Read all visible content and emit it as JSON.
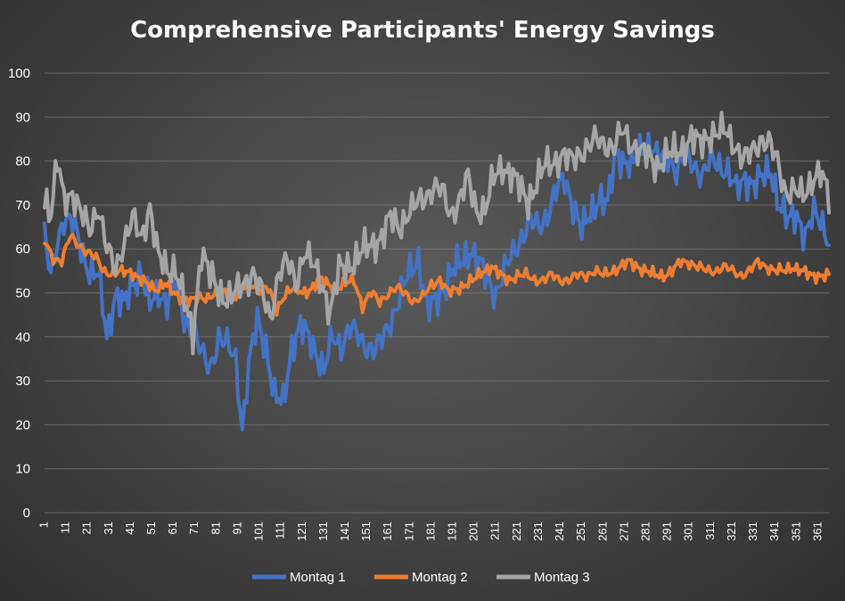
{
  "chart_data": {
    "type": "line",
    "title": "Comprehensive Participants' Energy Savings",
    "xlabel": "",
    "ylabel": "",
    "ylim": [
      0,
      100
    ],
    "yticks": [
      0,
      10,
      20,
      30,
      40,
      50,
      60,
      70,
      80,
      90,
      100
    ],
    "xticks": [
      1,
      11,
      21,
      31,
      41,
      51,
      61,
      71,
      81,
      91,
      101,
      111,
      121,
      131,
      141,
      151,
      161,
      171,
      181,
      191,
      201,
      211,
      221,
      231,
      241,
      251,
      261,
      271,
      281,
      291,
      301,
      311,
      321,
      331,
      341,
      351,
      361
    ],
    "x_range": [
      1,
      366
    ],
    "grid": true,
    "legend_position": "bottom",
    "series": [
      {
        "name": "Montag 1",
        "color": "#4472c4",
        "keypoints": [
          [
            1,
            63
          ],
          [
            4,
            53
          ],
          [
            7,
            62
          ],
          [
            10,
            67
          ],
          [
            14,
            66
          ],
          [
            18,
            60
          ],
          [
            22,
            55
          ],
          [
            26,
            54
          ],
          [
            30,
            40
          ],
          [
            34,
            50
          ],
          [
            38,
            47
          ],
          [
            42,
            52
          ],
          [
            46,
            55
          ],
          [
            50,
            47
          ],
          [
            54,
            50
          ],
          [
            58,
            48
          ],
          [
            62,
            52
          ],
          [
            66,
            44
          ],
          [
            70,
            42
          ],
          [
            74,
            36
          ],
          [
            78,
            33
          ],
          [
            82,
            40
          ],
          [
            86,
            38
          ],
          [
            90,
            35
          ],
          [
            93,
            19
          ],
          [
            96,
            33
          ],
          [
            100,
            44
          ],
          [
            104,
            38
          ],
          [
            108,
            26
          ],
          [
            112,
            25
          ],
          [
            116,
            38
          ],
          [
            120,
            42
          ],
          [
            124,
            40
          ],
          [
            128,
            36
          ],
          [
            131,
            32
          ],
          [
            135,
            40
          ],
          [
            139,
            38
          ],
          [
            143,
            42
          ],
          [
            147,
            40
          ],
          [
            151,
            38
          ],
          [
            155,
            37
          ],
          [
            159,
            40
          ],
          [
            163,
            45
          ],
          [
            167,
            50
          ],
          [
            171,
            55
          ],
          [
            175,
            58
          ],
          [
            179,
            46
          ],
          [
            183,
            48
          ],
          [
            187,
            52
          ],
          [
            191,
            55
          ],
          [
            195,
            57
          ],
          [
            199,
            60
          ],
          [
            203,
            57
          ],
          [
            207,
            53
          ],
          [
            211,
            50
          ],
          [
            215,
            55
          ],
          [
            219,
            59
          ],
          [
            223,
            63
          ],
          [
            227,
            66
          ],
          [
            231,
            65
          ],
          [
            235,
            68
          ],
          [
            239,
            73
          ],
          [
            243,
            76
          ],
          [
            247,
            70
          ],
          [
            251,
            64
          ],
          [
            255,
            68
          ],
          [
            259,
            72
          ],
          [
            263,
            70
          ],
          [
            267,
            82
          ],
          [
            271,
            80
          ],
          [
            275,
            79
          ],
          [
            279,
            83
          ],
          [
            283,
            84
          ],
          [
            287,
            80
          ],
          [
            291,
            81
          ],
          [
            295,
            78
          ],
          [
            299,
            81
          ],
          [
            303,
            79
          ],
          [
            307,
            77
          ],
          [
            311,
            80
          ],
          [
            315,
            79
          ],
          [
            319,
            78
          ],
          [
            323,
            73
          ],
          [
            327,
            76
          ],
          [
            331,
            75
          ],
          [
            335,
            76
          ],
          [
            339,
            78
          ],
          [
            343,
            70
          ],
          [
            347,
            66
          ],
          [
            351,
            68
          ],
          [
            355,
            63
          ],
          [
            359,
            68
          ],
          [
            363,
            66
          ],
          [
            366,
            62
          ]
        ],
        "amplitude": 5
      },
      {
        "name": "Montag 2",
        "color": "#ed7d31",
        "keypoints": [
          [
            1,
            62
          ],
          [
            5,
            58
          ],
          [
            9,
            57
          ],
          [
            13,
            63
          ],
          [
            17,
            61
          ],
          [
            21,
            59
          ],
          [
            25,
            58
          ],
          [
            29,
            55
          ],
          [
            33,
            54
          ],
          [
            37,
            55
          ],
          [
            41,
            55
          ],
          [
            45,
            53
          ],
          [
            49,
            52
          ],
          [
            53,
            51
          ],
          [
            57,
            52
          ],
          [
            61,
            50
          ],
          [
            65,
            49
          ],
          [
            69,
            48
          ],
          [
            73,
            49
          ],
          [
            77,
            49
          ],
          [
            81,
            50
          ],
          [
            85,
            50
          ],
          [
            89,
            49
          ],
          [
            93,
            51
          ],
          [
            97,
            52
          ],
          [
            101,
            51
          ],
          [
            105,
            51
          ],
          [
            109,
            46
          ],
          [
            113,
            50
          ],
          [
            117,
            51
          ],
          [
            121,
            50
          ],
          [
            125,
            51
          ],
          [
            129,
            53
          ],
          [
            133,
            52
          ],
          [
            137,
            51
          ],
          [
            141,
            52
          ],
          [
            145,
            53
          ],
          [
            149,
            47
          ],
          [
            153,
            50
          ],
          [
            157,
            48
          ],
          [
            161,
            50
          ],
          [
            165,
            51
          ],
          [
            169,
            50
          ],
          [
            173,
            48
          ],
          [
            177,
            49
          ],
          [
            181,
            52
          ],
          [
            185,
            53
          ],
          [
            189,
            50
          ],
          [
            193,
            51
          ],
          [
            197,
            52
          ],
          [
            201,
            53
          ],
          [
            205,
            55
          ],
          [
            209,
            56
          ],
          [
            213,
            54
          ],
          [
            217,
            53
          ],
          [
            221,
            54
          ],
          [
            225,
            54
          ],
          [
            229,
            53
          ],
          [
            233,
            53
          ],
          [
            237,
            54
          ],
          [
            241,
            53
          ],
          [
            245,
            53
          ],
          [
            249,
            54
          ],
          [
            253,
            54
          ],
          [
            257,
            55
          ],
          [
            261,
            54
          ],
          [
            265,
            55
          ],
          [
            269,
            56
          ],
          [
            273,
            57
          ],
          [
            277,
            56
          ],
          [
            281,
            55
          ],
          [
            285,
            54
          ],
          [
            289,
            54
          ],
          [
            293,
            55
          ],
          [
            297,
            57
          ],
          [
            301,
            57
          ],
          [
            305,
            56
          ],
          [
            309,
            55
          ],
          [
            313,
            55
          ],
          [
            317,
            56
          ],
          [
            321,
            55
          ],
          [
            325,
            54
          ],
          [
            329,
            55
          ],
          [
            333,
            57
          ],
          [
            337,
            56
          ],
          [
            341,
            55
          ],
          [
            345,
            55
          ],
          [
            349,
            56
          ],
          [
            353,
            55
          ],
          [
            357,
            54
          ],
          [
            361,
            54
          ],
          [
            366,
            54
          ]
        ],
        "amplitude": 1.8
      },
      {
        "name": "Montag 3",
        "color": "#a5a5a5",
        "keypoints": [
          [
            1,
            72
          ],
          [
            4,
            68
          ],
          [
            7,
            80
          ],
          [
            10,
            71
          ],
          [
            14,
            73
          ],
          [
            18,
            68
          ],
          [
            22,
            64
          ],
          [
            26,
            70
          ],
          [
            30,
            60
          ],
          [
            34,
            55
          ],
          [
            38,
            62
          ],
          [
            42,
            67
          ],
          [
            46,
            62
          ],
          [
            50,
            70
          ],
          [
            54,
            58
          ],
          [
            58,
            55
          ],
          [
            62,
            56
          ],
          [
            66,
            48
          ],
          [
            70,
            40
          ],
          [
            74,
            60
          ],
          [
            78,
            54
          ],
          [
            82,
            50
          ],
          [
            86,
            49
          ],
          [
            90,
            50
          ],
          [
            94,
            52
          ],
          [
            98,
            55
          ],
          [
            102,
            50
          ],
          [
            106,
            44
          ],
          [
            110,
            55
          ],
          [
            114,
            57
          ],
          [
            118,
            52
          ],
          [
            122,
            60
          ],
          [
            126,
            56
          ],
          [
            130,
            52
          ],
          [
            134,
            46
          ],
          [
            138,
            55
          ],
          [
            142,
            56
          ],
          [
            146,
            58
          ],
          [
            150,
            60
          ],
          [
            154,
            61
          ],
          [
            158,
            63
          ],
          [
            162,
            67
          ],
          [
            166,
            65
          ],
          [
            170,
            68
          ],
          [
            174,
            70
          ],
          [
            178,
            72
          ],
          [
            182,
            74
          ],
          [
            186,
            73
          ],
          [
            190,
            68
          ],
          [
            194,
            71
          ],
          [
            198,
            76
          ],
          [
            202,
            69
          ],
          [
            206,
            69
          ],
          [
            210,
            76
          ],
          [
            214,
            79
          ],
          [
            218,
            77
          ],
          [
            222,
            74
          ],
          [
            226,
            71
          ],
          [
            230,
            75
          ],
          [
            234,
            79
          ],
          [
            238,
            80
          ],
          [
            242,
            81
          ],
          [
            246,
            80
          ],
          [
            250,
            82
          ],
          [
            254,
            83
          ],
          [
            258,
            85
          ],
          [
            262,
            84
          ],
          [
            266,
            83
          ],
          [
            270,
            87
          ],
          [
            274,
            84
          ],
          [
            278,
            82
          ],
          [
            282,
            81
          ],
          [
            286,
            79
          ],
          [
            290,
            81
          ],
          [
            294,
            82
          ],
          [
            298,
            83
          ],
          [
            302,
            85
          ],
          [
            306,
            84
          ],
          [
            310,
            86
          ],
          [
            314,
            86
          ],
          [
            318,
            87
          ],
          [
            322,
            84
          ],
          [
            326,
            80
          ],
          [
            330,
            82
          ],
          [
            334,
            85
          ],
          [
            338,
            84
          ],
          [
            342,
            80
          ],
          [
            346,
            73
          ],
          [
            350,
            73
          ],
          [
            354,
            72
          ],
          [
            358,
            76
          ],
          [
            362,
            77
          ],
          [
            366,
            72
          ]
        ],
        "amplitude": 5
      }
    ]
  }
}
